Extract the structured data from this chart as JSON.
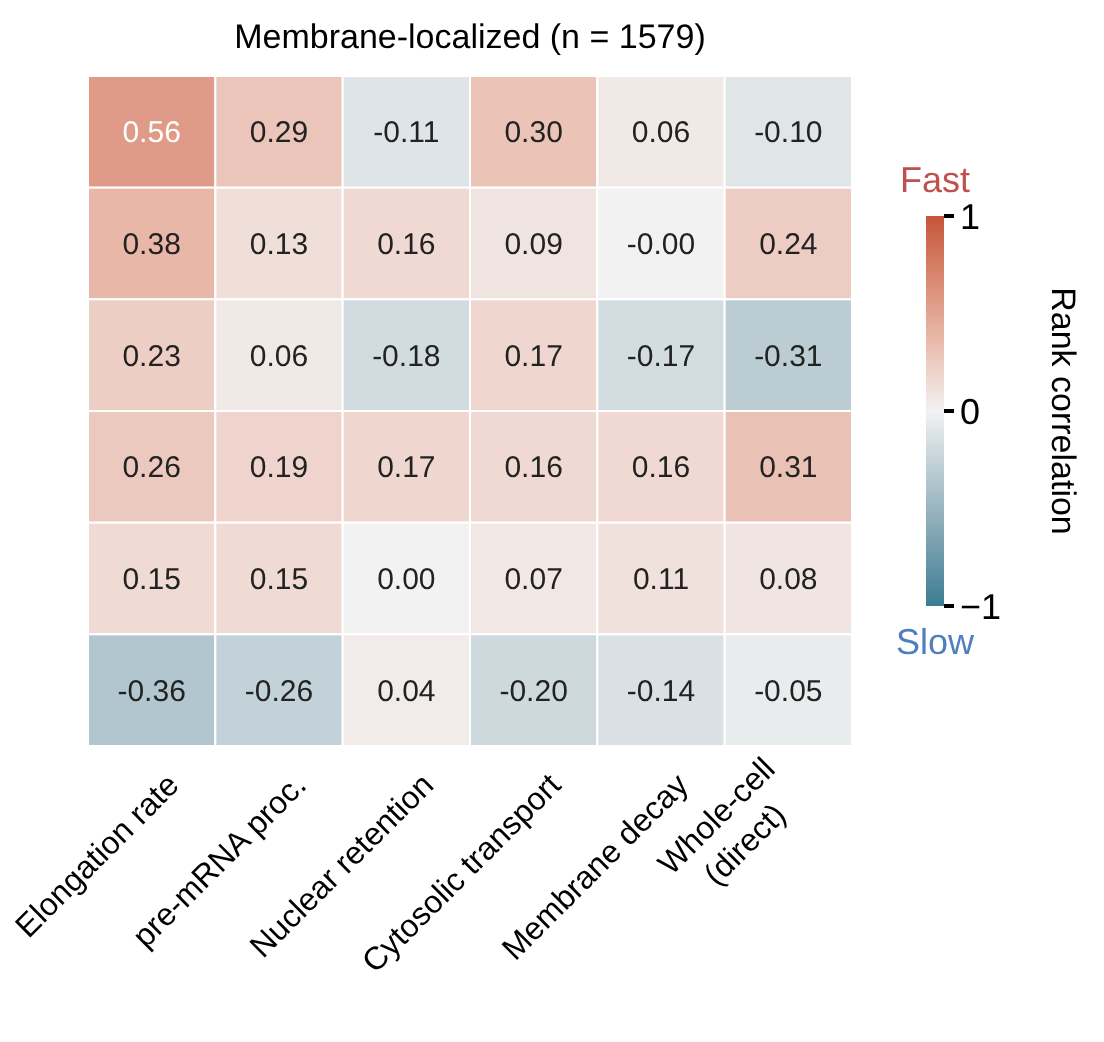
{
  "chart_data": {
    "type": "heatmap",
    "title": "Membrane-localized (n = 1579)",
    "categories": [
      "Elongation rate",
      "pre-mRNA proc.",
      "Nuclear retention",
      "Cytosolic transport",
      "Membrane decay",
      "Whole-cell\n(direct)"
    ],
    "y_categories": [
      null,
      null,
      null,
      null,
      null,
      null
    ],
    "cells": [
      [
        0.56,
        0.29,
        -0.11,
        0.3,
        0.06,
        -0.1
      ],
      [
        0.38,
        0.13,
        0.16,
        0.09,
        -0.0,
        0.24
      ],
      [
        0.23,
        0.06,
        -0.18,
        0.17,
        -0.17,
        -0.31
      ],
      [
        0.26,
        0.19,
        0.17,
        0.16,
        0.16,
        0.31
      ],
      [
        0.15,
        0.15,
        0.0,
        0.07,
        0.11,
        0.08
      ],
      [
        -0.36,
        -0.26,
        0.04,
        -0.2,
        -0.14,
        -0.05
      ]
    ],
    "cell_labels": [
      [
        "0.56",
        "0.29",
        "-0.11",
        "0.30",
        "0.06",
        "-0.10"
      ],
      [
        "0.38",
        "0.13",
        "0.16",
        "0.09",
        "-0.00",
        "0.24"
      ],
      [
        "0.23",
        "0.06",
        "-0.18",
        "0.17",
        "-0.17",
        "-0.31"
      ],
      [
        "0.26",
        "0.19",
        "0.17",
        "0.16",
        "0.16",
        "0.31"
      ],
      [
        "0.15",
        "0.15",
        "0.00",
        "0.07",
        "0.11",
        "0.08"
      ],
      [
        "-0.36",
        "-0.26",
        "0.04",
        "-0.20",
        "-0.14",
        "-0.05"
      ]
    ],
    "clim": [
      -1,
      1
    ],
    "cticks": [
      {
        "value": -1,
        "label": "−1"
      },
      0,
      1
    ],
    "clabel": "Rank correlation",
    "annotations": [
      "Fast",
      "Slow"
    ]
  }
}
